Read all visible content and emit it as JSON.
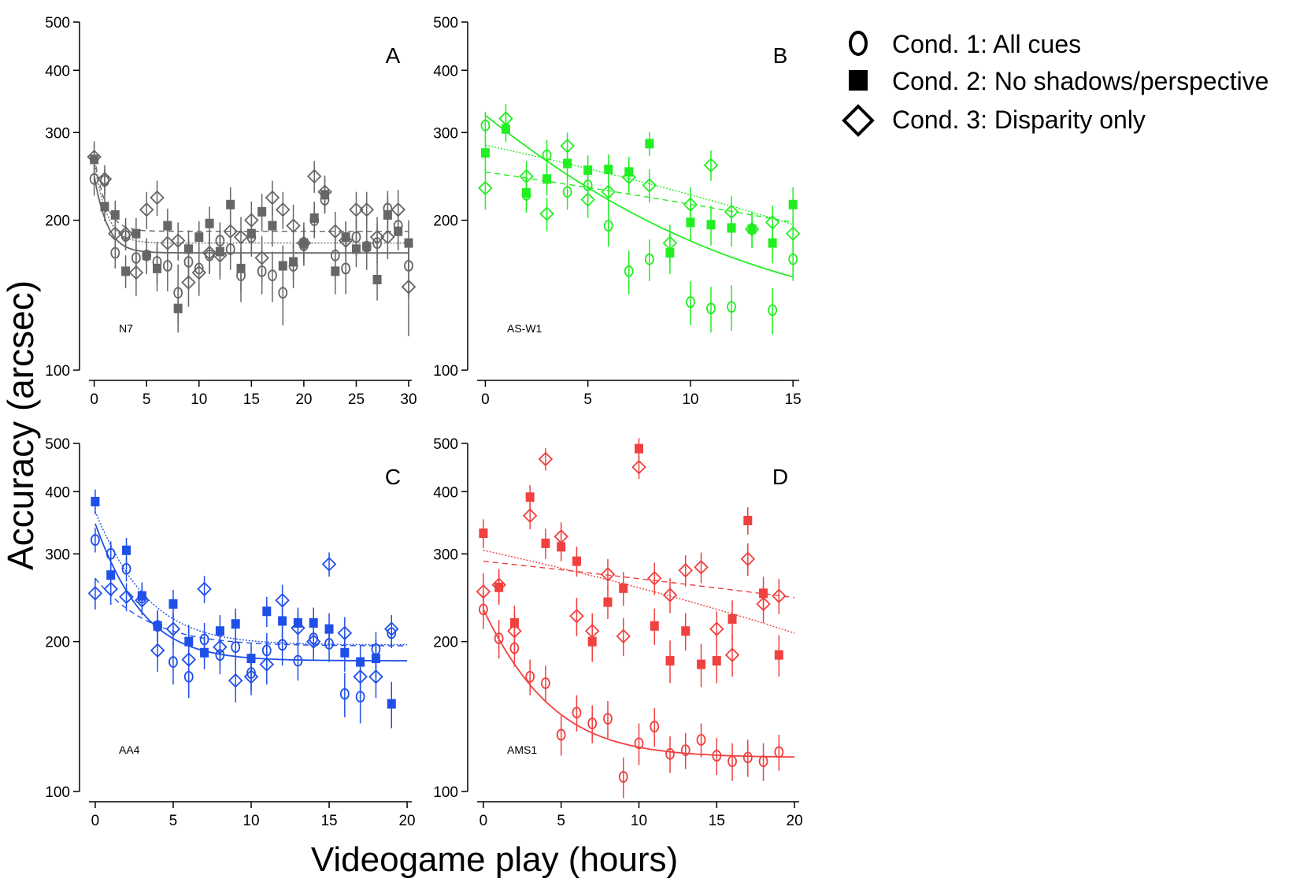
{
  "figure": {
    "ylabel": "Accuracy (arcsec)",
    "xlabel": "Videogame play (hours)"
  },
  "legend": {
    "placement": "top-right",
    "entries": [
      {
        "marker": "open-circle",
        "label": "Cond. 1: All cues"
      },
      {
        "marker": "filled-square",
        "label": "Cond. 2: No shadows/perspective"
      },
      {
        "marker": "open-diamond",
        "label": "Cond. 3: Disparity only"
      }
    ]
  },
  "chart_data": [
    {
      "type": "scatter",
      "panel": "A",
      "subject": "N7",
      "color": "#666666",
      "y_scale": "log",
      "ylim": [
        100,
        500
      ],
      "xlim": [
        -0.5,
        30.3
      ],
      "xticks": [
        0,
        5,
        10,
        15,
        20,
        25,
        30
      ],
      "yticks": [
        100,
        200,
        300,
        400,
        500
      ],
      "series": [
        {
          "marker": "circle",
          "x": [
            0,
            1,
            2,
            3,
            4,
            5,
            6,
            7,
            8,
            9,
            10,
            11,
            12,
            13,
            14,
            15,
            16,
            17,
            18,
            19,
            20,
            21,
            22,
            23,
            24,
            25,
            26,
            27,
            28,
            29,
            30
          ],
          "y": [
            242,
            240,
            172,
            186,
            168,
            170,
            165,
            162,
            143,
            165,
            160,
            170,
            182,
            175,
            155,
            185,
            158,
            155,
            143,
            162,
            178,
            200,
            220,
            170,
            160,
            185,
            177,
            180,
            211,
            195,
            162
          ],
          "err": [
            18,
            14,
            12,
            12,
            14,
            14,
            16,
            18,
            20,
            18,
            16,
            14,
            16,
            16,
            18,
            16,
            16,
            18,
            20,
            16,
            16,
            16,
            14,
            16,
            18,
            16,
            18,
            16,
            18,
            20,
            22
          ]
        },
        {
          "marker": "square",
          "x": [
            0,
            1,
            2,
            3,
            4,
            5,
            6,
            7,
            8,
            9,
            10,
            11,
            12,
            13,
            14,
            15,
            16,
            17,
            18,
            19,
            20,
            21,
            22,
            23,
            24,
            25,
            26,
            27,
            28,
            29,
            30
          ],
          "y": [
            265,
            213,
            205,
            158,
            188,
            170,
            160,
            195,
            133,
            175,
            185,
            197,
            173,
            215,
            160,
            188,
            208,
            195,
            162,
            165,
            180,
            202,
            225,
            158,
            185,
            175,
            177,
            152,
            205,
            190,
            180
          ],
          "err": [
            20,
            14,
            14,
            12,
            14,
            14,
            16,
            16,
            14,
            16,
            14,
            16,
            18,
            18,
            16,
            16,
            18,
            18,
            16,
            14,
            14,
            16,
            18,
            16,
            14,
            14,
            16,
            14,
            18,
            16,
            20
          ]
        },
        {
          "marker": "diamond",
          "x": [
            0,
            1,
            2,
            3,
            4,
            5,
            6,
            7,
            8,
            9,
            10,
            11,
            12,
            13,
            14,
            15,
            16,
            17,
            18,
            19,
            20,
            21,
            22,
            23,
            24,
            25,
            26,
            27,
            28,
            29,
            30
          ],
          "y": [
            268,
            242,
            188,
            188,
            157,
            210,
            222,
            180,
            182,
            150,
            157,
            172,
            170,
            190,
            185,
            200,
            168,
            222,
            210,
            195,
            180,
            245,
            228,
            190,
            182,
            210,
            210,
            185,
            185,
            210,
            147
          ],
          "err": [
            20,
            16,
            14,
            14,
            16,
            18,
            18,
            16,
            16,
            16,
            16,
            16,
            18,
            18,
            18,
            18,
            18,
            18,
            18,
            20,
            18,
            18,
            18,
            18,
            16,
            18,
            18,
            18,
            18,
            20,
            30
          ]
        }
      ],
      "fits": [
        {
          "condition": 1,
          "style": "solid",
          "asymptote": 172,
          "start": 245,
          "rate": 0.9
        },
        {
          "condition": 2,
          "style": "dotted",
          "asymptote": 180,
          "start": 262,
          "rate": 0.95
        },
        {
          "condition": 3,
          "style": "dashed",
          "asymptote": 190,
          "start": 268,
          "rate": 1.0
        }
      ]
    },
    {
      "type": "scatter",
      "panel": "B",
      "subject": "AS-W1",
      "color": "#22ee22",
      "y_scale": "log",
      "ylim": [
        100,
        500
      ],
      "xlim": [
        -0.4,
        15.3
      ],
      "xticks": [
        0,
        5,
        10,
        15
      ],
      "yticks": [
        100,
        200,
        300,
        400,
        500
      ],
      "series": [
        {
          "marker": "circle",
          "x": [
            0,
            2,
            3,
            4,
            5,
            6,
            7,
            8,
            10,
            11,
            12,
            14,
            15
          ],
          "y": [
            310,
            225,
            270,
            228,
            235,
            195,
            158,
            167,
            137,
            133,
            134,
            132,
            167
          ],
          "err": [
            20,
            18,
            20,
            18,
            18,
            18,
            16,
            16,
            14,
            14,
            14,
            14,
            16
          ]
        },
        {
          "marker": "square",
          "x": [
            0,
            1,
            2,
            3,
            4,
            5,
            6,
            7,
            8,
            9,
            10,
            11,
            12,
            13,
            14,
            15
          ],
          "y": [
            273,
            305,
            227,
            242,
            260,
            252,
            253,
            250,
            285,
            172,
            198,
            196,
            193,
            192,
            180,
            215
          ],
          "err": [
            22,
            18,
            16,
            18,
            18,
            18,
            18,
            18,
            16,
            16,
            16,
            18,
            16,
            16,
            16,
            18
          ]
        },
        {
          "marker": "diamond",
          "x": [
            0,
            1,
            2,
            3,
            4,
            5,
            6,
            7,
            8,
            9,
            10,
            11,
            12,
            13,
            14,
            15
          ],
          "y": [
            232,
            320,
            245,
            206,
            282,
            220,
            228,
            244,
            235,
            180,
            215,
            258,
            208,
            192,
            198,
            188
          ],
          "err": [
            22,
            22,
            18,
            16,
            18,
            18,
            18,
            18,
            18,
            16,
            18,
            18,
            16,
            16,
            16,
            16
          ]
        }
      ],
      "fits": [
        {
          "condition": 1,
          "style": "solid",
          "asymptote": 120,
          "start": 325,
          "rate": 0.12
        },
        {
          "condition": 2,
          "style": "dotted",
          "linear": [
            283,
            196
          ]
        },
        {
          "condition": 3,
          "style": "dashed",
          "linear": [
            250,
            198
          ]
        }
      ]
    },
    {
      "type": "scatter",
      "panel": "C",
      "subject": "AA4",
      "color": "#1f4fe8",
      "y_scale": "log",
      "ylim": [
        100,
        500
      ],
      "xlim": [
        -0.4,
        20.3
      ],
      "xticks": [
        0,
        5,
        10,
        15,
        20
      ],
      "yticks": [
        100,
        200,
        300,
        400,
        500
      ],
      "series": [
        {
          "marker": "circle",
          "x": [
            0,
            1,
            2,
            3,
            4,
            5,
            6,
            7,
            8,
            9,
            10,
            11,
            12,
            13,
            14,
            15,
            16,
            17,
            18,
            19
          ],
          "y": [
            320,
            300,
            280,
            245,
            215,
            182,
            170,
            202,
            188,
            195,
            173,
            192,
            197,
            183,
            203,
            198,
            157,
            155,
            193,
            208
          ],
          "err": [
            18,
            18,
            16,
            14,
            16,
            18,
            16,
            16,
            16,
            16,
            14,
            16,
            18,
            16,
            16,
            16,
            16,
            18,
            16,
            14
          ]
        },
        {
          "marker": "square",
          "x": [
            0,
            1,
            2,
            3,
            4,
            5,
            6,
            7,
            8,
            9,
            10,
            11,
            12,
            13,
            14,
            15,
            16,
            17,
            18,
            19
          ],
          "y": [
            382,
            272,
            305,
            247,
            215,
            238,
            200,
            190,
            210,
            217,
            185,
            230,
            220,
            218,
            218,
            212,
            190,
            182,
            185,
            150
          ],
          "err": [
            22,
            18,
            18,
            16,
            16,
            16,
            16,
            14,
            16,
            16,
            14,
            16,
            16,
            16,
            16,
            16,
            16,
            14,
            16,
            16
          ]
        },
        {
          "marker": "diamond",
          "x": [
            0,
            1,
            2,
            3,
            4,
            5,
            6,
            7,
            8,
            9,
            10,
            11,
            12,
            13,
            14,
            15,
            16,
            17,
            18,
            19
          ],
          "y": [
            250,
            255,
            246,
            242,
            192,
            212,
            184,
            255,
            195,
            167,
            170,
            180,
            242,
            213,
            200,
            286,
            208,
            170,
            170,
            212
          ],
          "err": [
            18,
            18,
            16,
            16,
            18,
            16,
            16,
            16,
            16,
            16,
            14,
            16,
            18,
            16,
            16,
            16,
            16,
            16,
            16,
            14
          ]
        }
      ],
      "fits": [
        {
          "condition": 1,
          "style": "solid",
          "asymptote": 183,
          "start": 345,
          "rate": 0.42
        },
        {
          "condition": 2,
          "style": "dotted",
          "asymptote": 197,
          "start": 365,
          "rate": 0.38
        },
        {
          "condition": 3,
          "style": "dashed",
          "asymptote": 196,
          "start": 268,
          "rate": 0.33
        }
      ]
    },
    {
      "type": "scatter",
      "panel": "D",
      "subject": "AMS1",
      "color": "#f04040",
      "y_scale": "log",
      "ylim": [
        100,
        500
      ],
      "xlim": [
        -0.4,
        20.3
      ],
      "xticks": [
        0,
        5,
        10,
        15,
        20
      ],
      "yticks": [
        100,
        200,
        300,
        400,
        500
      ],
      "series": [
        {
          "marker": "circle",
          "x": [
            0,
            1,
            2,
            3,
            4,
            5,
            6,
            7,
            8,
            9,
            10,
            11,
            12,
            13,
            14,
            15,
            16,
            17,
            18,
            19
          ],
          "y": [
            232,
            203,
            194,
            170,
            165,
            130,
            144,
            137,
            140,
            107,
            125,
            135,
            119,
            121,
            127,
            118,
            115,
            117,
            115,
            120
          ],
          "err": [
            20,
            18,
            16,
            14,
            14,
            12,
            12,
            12,
            12,
            10,
            12,
            12,
            10,
            10,
            10,
            10,
            10,
            10,
            10,
            10
          ]
        },
        {
          "marker": "square",
          "x": [
            0,
            1,
            2,
            3,
            4,
            5,
            6,
            7,
            8,
            9,
            10,
            11,
            12,
            13,
            14,
            15,
            16,
            17,
            18,
            19
          ],
          "y": [
            330,
            257,
            218,
            390,
            315,
            310,
            290,
            200,
            240,
            256,
            488,
            215,
            183,
            210,
            180,
            183,
            222,
            350,
            250,
            188
          ],
          "err": [
            22,
            20,
            18,
            22,
            22,
            20,
            20,
            18,
            18,
            20,
            24,
            18,
            18,
            18,
            18,
            18,
            20,
            22,
            20,
            18
          ]
        },
        {
          "marker": "diamond",
          "x": [
            0,
            1,
            2,
            3,
            4,
            5,
            6,
            7,
            8,
            9,
            10,
            11,
            12,
            13,
            14,
            15,
            16,
            17,
            18,
            19
          ],
          "y": [
            252,
            260,
            210,
            358,
            465,
            325,
            225,
            210,
            273,
            205,
            448,
            268,
            248,
            278,
            282,
            212,
            188,
            293,
            238,
            247
          ],
          "err": [
            22,
            20,
            18,
            22,
            24,
            22,
            20,
            18,
            20,
            18,
            24,
            20,
            20,
            20,
            20,
            18,
            18,
            22,
            20,
            20
          ]
        }
      ],
      "fits": [
        {
          "condition": 1,
          "style": "solid",
          "asymptote": 117,
          "start": 232,
          "rate": 0.3
        },
        {
          "condition": 2,
          "style": "dotted",
          "linear": [
            305,
            208
          ]
        },
        {
          "condition": 3,
          "style": "dashed",
          "linear": [
            290,
            245
          ]
        }
      ]
    }
  ]
}
